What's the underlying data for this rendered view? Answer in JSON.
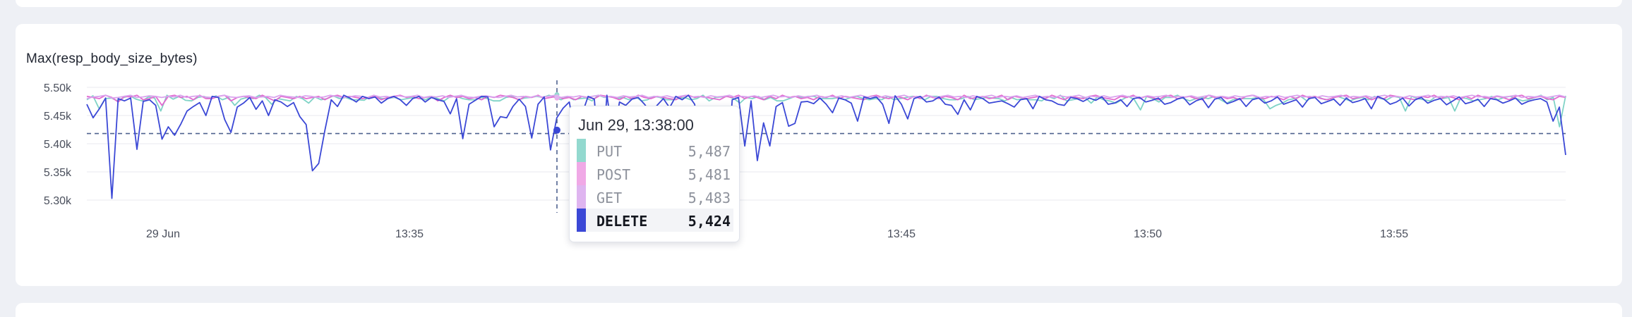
{
  "chart_data": {
    "type": "line",
    "title": "Max(resp_body_size_bytes)",
    "xlabel": "",
    "ylabel": "",
    "ylim": [
      5300,
      5500
    ],
    "yticks": [
      {
        "value": 5500,
        "label": "5.50k"
      },
      {
        "value": 5450,
        "label": "5.45k"
      },
      {
        "value": 5400,
        "label": "5.40k"
      },
      {
        "value": 5350,
        "label": "5.35k"
      },
      {
        "value": 5300,
        "label": "5.30k"
      }
    ],
    "xticks": [
      "29 Jun",
      "13:35",
      "13:40",
      "13:45",
      "13:50",
      "13:55"
    ],
    "grid": true,
    "legend": "none",
    "reference_line_value": 5418,
    "series": [
      {
        "name": "PUT",
        "color": "#7fd3c6",
        "values": [
          5478,
          5485,
          5462,
          5480,
          5481,
          5476,
          5482,
          5485,
          5479,
          5476,
          5483,
          5481,
          5458,
          5486,
          5479,
          5484,
          5477,
          5476,
          5482,
          5484,
          5480,
          5485,
          5478,
          5482,
          5468,
          5479,
          5482,
          5480,
          5486,
          5482,
          5470,
          5480,
          5478,
          5476,
          5484,
          5480,
          5472,
          5483,
          5478,
          5480,
          5485,
          5480,
          5482,
          5478,
          5478,
          5477,
          5484,
          5482,
          5480,
          5481,
          5482,
          5478,
          5480,
          5482,
          5480,
          5478,
          5484,
          5480,
          5476,
          5484,
          5484,
          5480,
          5478,
          5478,
          5482,
          5480,
          5476,
          5476,
          5482,
          5484,
          5478,
          5481,
          5482,
          5484,
          5482,
          5486,
          5482,
          5478,
          5484,
          5478,
          5480,
          5481,
          5476,
          5486,
          5482,
          5484,
          5480,
          5482,
          5478,
          5484,
          5476,
          5478,
          5484,
          5482,
          5478,
          5478,
          5480,
          5482,
          5478,
          5480,
          5486,
          5476,
          5482,
          5483,
          5484,
          5480,
          5472,
          5482,
          5480,
          5484,
          5478,
          5482,
          5476,
          5476,
          5480,
          5484,
          5482,
          5484,
          5484,
          5480,
          5480,
          5480,
          5482,
          5478,
          5482,
          5484,
          5480,
          5478,
          5480,
          5478,
          5484,
          5478,
          5480,
          5482,
          5484,
          5482,
          5478,
          5484,
          5484,
          5480,
          5478,
          5478,
          5480,
          5484,
          5478,
          5480,
          5482,
          5481,
          5480,
          5476,
          5482,
          5478,
          5480,
          5478,
          5478,
          5476,
          5484,
          5480,
          5486,
          5476,
          5478,
          5480,
          5482,
          5472,
          5483,
          5478,
          5476,
          5472,
          5478,
          5484,
          5478,
          5460,
          5484,
          5480,
          5474,
          5482,
          5482,
          5486,
          5480,
          5476,
          5480,
          5482,
          5480,
          5484,
          5478,
          5472,
          5478,
          5480,
          5480,
          5480,
          5482,
          5478,
          5462,
          5468,
          5472,
          5478,
          5480,
          5484,
          5476,
          5484,
          5482,
          5478,
          5480,
          5484,
          5480,
          5476,
          5480,
          5482,
          5478,
          5484,
          5480,
          5478,
          5484,
          5482,
          5458,
          5484,
          5480,
          5478,
          5476,
          5484,
          5480,
          5482,
          5458,
          5482,
          5480,
          5476,
          5478,
          5480,
          5484,
          5478,
          5482,
          5484,
          5480,
          5476,
          5478,
          5482,
          5486,
          5478,
          5482,
          5430,
          5485
        ]
      },
      {
        "name": "POST",
        "color": "#e26bd0",
        "values": [
          5484,
          5482,
          5480,
          5486,
          5482,
          5474,
          5484,
          5483,
          5486,
          5478,
          5480,
          5484,
          5468,
          5484,
          5486,
          5482,
          5484,
          5478,
          5486,
          5480,
          5480,
          5484,
          5486,
          5476,
          5482,
          5484,
          5482,
          5480,
          5486,
          5481,
          5476,
          5484,
          5482,
          5480,
          5484,
          5480,
          5482,
          5484,
          5478,
          5484,
          5486,
          5482,
          5484,
          5482,
          5480,
          5482,
          5484,
          5478,
          5482,
          5484,
          5486,
          5482,
          5484,
          5480,
          5482,
          5484,
          5476,
          5482,
          5486,
          5482,
          5484,
          5480,
          5482,
          5478,
          5484,
          5482,
          5486,
          5484,
          5482,
          5478,
          5484,
          5482,
          5486,
          5480,
          5482,
          5484,
          5480,
          5482,
          5478,
          5484,
          5482,
          5480,
          5486,
          5484,
          5482,
          5478,
          5484,
          5480,
          5486,
          5482,
          5480,
          5484,
          5482,
          5480,
          5478,
          5484,
          5486,
          5482,
          5484,
          5482,
          5480,
          5478,
          5484,
          5482,
          5486,
          5480,
          5484,
          5482,
          5478,
          5484,
          5480,
          5486,
          5482,
          5484,
          5480,
          5482,
          5478,
          5484,
          5482,
          5486,
          5480,
          5484,
          5482,
          5480,
          5478,
          5484,
          5486,
          5482,
          5480,
          5484,
          5482,
          5478,
          5484,
          5480,
          5486,
          5482,
          5480,
          5484,
          5482,
          5478,
          5486,
          5480,
          5482,
          5484,
          5480,
          5482,
          5486,
          5478,
          5484,
          5482,
          5480,
          5482,
          5484,
          5480,
          5486,
          5482,
          5478,
          5484,
          5482,
          5480,
          5484,
          5486,
          5482,
          5480,
          5478,
          5484,
          5482,
          5486,
          5480,
          5484,
          5482,
          5478,
          5484,
          5486,
          5480,
          5482,
          5484,
          5480,
          5478,
          5486,
          5482,
          5484,
          5480,
          5482,
          5478,
          5484,
          5486,
          5482,
          5480,
          5484,
          5482,
          5478,
          5484,
          5480,
          5486,
          5482,
          5484,
          5480,
          5478,
          5482,
          5484,
          5486,
          5480,
          5482,
          5484,
          5478,
          5482,
          5480,
          5486,
          5484,
          5482,
          5480,
          5478,
          5484,
          5482,
          5486,
          5480,
          5484,
          5482,
          5478,
          5484,
          5480,
          5486,
          5482,
          5480,
          5484,
          5482,
          5478,
          5484,
          5486,
          5480,
          5482,
          5484,
          5480,
          5478,
          5484,
          5482
        ]
      },
      {
        "name": "GET",
        "color": "#d9a4ee",
        "values": [
          5480,
          5483,
          5484,
          5486,
          5481,
          5482,
          5484,
          5486,
          5482,
          5483,
          5485,
          5484,
          5482,
          5484,
          5483,
          5486,
          5482,
          5484,
          5485,
          5483,
          5482,
          5484,
          5486,
          5483,
          5482,
          5484,
          5485,
          5482,
          5483,
          5484,
          5482,
          5486,
          5484,
          5483,
          5482,
          5485,
          5484,
          5482,
          5483,
          5486,
          5484,
          5482,
          5483,
          5485,
          5484,
          5482,
          5486,
          5483,
          5484,
          5482,
          5485,
          5483,
          5484,
          5486,
          5482,
          5484,
          5483,
          5485,
          5482,
          5484,
          5486,
          5483,
          5482,
          5484,
          5485,
          5483,
          5482,
          5484,
          5486,
          5483,
          5484,
          5482,
          5485,
          5483,
          5484,
          5486,
          5482,
          5484,
          5483,
          5485,
          5482,
          5484,
          5486,
          5483,
          5484,
          5482,
          5485,
          5483,
          5484,
          5486,
          5482,
          5484,
          5483,
          5485,
          5482,
          5484,
          5486,
          5483,
          5484,
          5482,
          5485,
          5483,
          5484,
          5486,
          5482,
          5484,
          5483,
          5485,
          5482,
          5484,
          5486,
          5483,
          5484,
          5482,
          5485,
          5483,
          5484,
          5486,
          5482,
          5484,
          5483,
          5485,
          5482,
          5484,
          5486,
          5483,
          5484,
          5482,
          5485,
          5483,
          5484,
          5486,
          5482,
          5484,
          5483,
          5485,
          5482,
          5484,
          5486,
          5483,
          5484,
          5482,
          5485,
          5483,
          5484,
          5486,
          5482,
          5484,
          5483,
          5485,
          5482,
          5484,
          5486,
          5483,
          5484,
          5482,
          5485,
          5483,
          5484,
          5486,
          5482,
          5484,
          5483,
          5485,
          5482,
          5484,
          5486,
          5483,
          5484,
          5482,
          5485,
          5483,
          5484,
          5486,
          5482,
          5484,
          5483,
          5485,
          5482,
          5484,
          5486,
          5483,
          5484,
          5482,
          5485,
          5483,
          5484,
          5486,
          5482,
          5484,
          5483,
          5485,
          5482,
          5484,
          5486,
          5483,
          5484,
          5482,
          5485,
          5483,
          5484,
          5486,
          5482,
          5484,
          5483,
          5485,
          5482,
          5484,
          5486,
          5483,
          5484,
          5482,
          5485,
          5483,
          5484,
          5486,
          5482,
          5484,
          5483,
          5485,
          5482,
          5484,
          5486,
          5483,
          5484,
          5482,
          5485,
          5483,
          5484,
          5486,
          5482,
          5484,
          5483,
          5485,
          5482,
          5484,
          5486,
          5483
        ]
      },
      {
        "name": "DELETE",
        "color": "#3b48d6",
        "values": [
          5470,
          5446,
          5462,
          5481,
          5303,
          5480,
          5476,
          5481,
          5390,
          5475,
          5478,
          5468,
          5408,
          5430,
          5415,
          5435,
          5458,
          5466,
          5473,
          5450,
          5484,
          5482,
          5443,
          5420,
          5465,
          5472,
          5482,
          5461,
          5476,
          5450,
          5478,
          5474,
          5466,
          5473,
          5448,
          5434,
          5352,
          5365,
          5424,
          5478,
          5466,
          5486,
          5481,
          5474,
          5484,
          5480,
          5483,
          5472,
          5480,
          5484,
          5478,
          5468,
          5480,
          5484,
          5474,
          5482,
          5478,
          5475,
          5453,
          5480,
          5409,
          5470,
          5477,
          5484,
          5483,
          5430,
          5448,
          5446,
          5466,
          5479,
          5466,
          5410,
          5470,
          5483,
          5389,
          5446,
          5463,
          5474,
          5412,
          5452,
          5484,
          5479,
          5336,
          5486,
          5409,
          5474,
          5468,
          5479,
          5482,
          5470,
          5455,
          5468,
          5480,
          5464,
          5484,
          5478,
          5486,
          5470,
          5396,
          5463,
          5462,
          5408,
          5318,
          5478,
          5482,
          5396,
          5476,
          5370,
          5437,
          5396,
          5466,
          5473,
          5431,
          5436,
          5474,
          5475,
          5471,
          5481,
          5470,
          5455,
          5481,
          5478,
          5472,
          5440,
          5483,
          5480,
          5483,
          5470,
          5436,
          5485,
          5470,
          5444,
          5480,
          5484,
          5474,
          5476,
          5483,
          5470,
          5468,
          5452,
          5478,
          5460,
          5484,
          5480,
          5472,
          5474,
          5476,
          5471,
          5465,
          5478,
          5480,
          5462,
          5484,
          5478,
          5476,
          5470,
          5468,
          5482,
          5480,
          5475,
          5481,
          5477,
          5483,
          5470,
          5472,
          5478,
          5466,
          5480,
          5482,
          5474,
          5477,
          5481,
          5470,
          5473,
          5479,
          5482,
          5469,
          5476,
          5480,
          5464,
          5479,
          5482,
          5471,
          5475,
          5480,
          5466,
          5478,
          5481,
          5472,
          5476,
          5483,
          5470,
          5474,
          5478,
          5465,
          5480,
          5482,
          5471,
          5475,
          5479,
          5468,
          5481,
          5473,
          5476,
          5480,
          5462,
          5484,
          5479,
          5470,
          5474,
          5481,
          5467,
          5478,
          5482,
          5472,
          5477,
          5480,
          5469,
          5476,
          5483,
          5471,
          5474,
          5479,
          5466,
          5480,
          5478,
          5472,
          5476,
          5481,
          5470,
          5475,
          5478,
          5480,
          5474,
          5440,
          5465,
          5380
        ]
      }
    ],
    "tooltip": {
      "title": "Jun 29, 13:38:00",
      "rows": [
        {
          "label": "PUT",
          "value": "5,487",
          "color": "#93d9cf",
          "active": false
        },
        {
          "label": "POST",
          "value": "5,481",
          "color": "#f0a9e6",
          "active": false
        },
        {
          "label": "GET",
          "value": "5,483",
          "color": "#dfb5f0",
          "active": false
        },
        {
          "label": "DELETE",
          "value": "5,424",
          "color": "#3b48d6",
          "active": true
        }
      ]
    }
  }
}
